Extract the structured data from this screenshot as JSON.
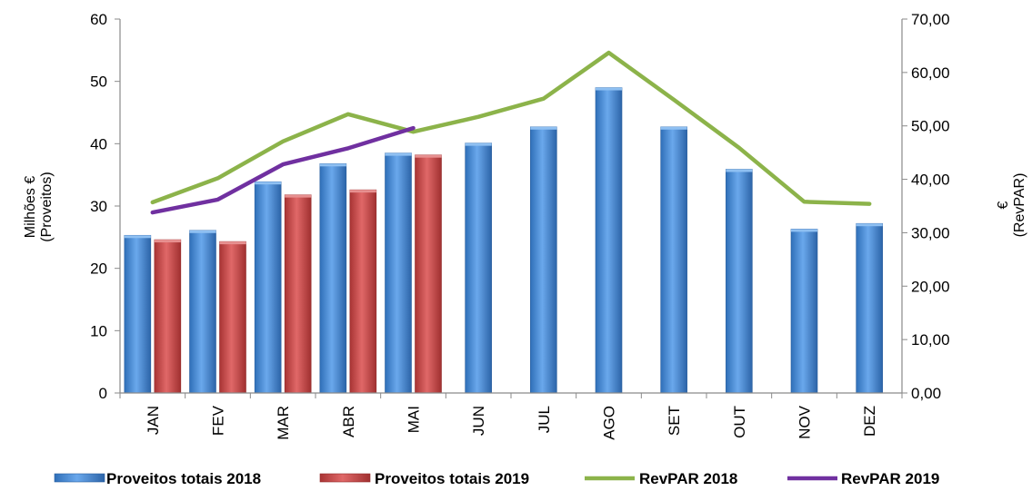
{
  "chart_data": {
    "type": "bar+line",
    "categories": [
      "JAN",
      "FEV",
      "MAR",
      "ABR",
      "MAI",
      "JUN",
      "JUL",
      "AGO",
      "SET",
      "OUT",
      "NOV",
      "DEZ"
    ],
    "bar_series": [
      {
        "name": "Proveitos totais 2018",
        "color": "#4f8fd6",
        "values": [
          25.3,
          26.1,
          33.9,
          36.8,
          38.5,
          40.1,
          42.7,
          49.0,
          42.7,
          35.9,
          26.3,
          27.2
        ]
      },
      {
        "name": "Proveitos totais 2019",
        "color": "#d05050",
        "values": [
          24.6,
          24.3,
          31.8,
          32.6,
          38.2,
          null,
          null,
          null,
          null,
          null,
          null,
          null
        ]
      }
    ],
    "line_series": [
      {
        "name": "RevPAR 2018",
        "color": "#8cb34a",
        "values": [
          35.7,
          40.2,
          47.1,
          52.2,
          48.9,
          51.7,
          55.1,
          63.7,
          54.9,
          45.9,
          35.8,
          35.4
        ]
      },
      {
        "name": "RevPAR 2019",
        "color": "#7030a0",
        "values": [
          33.8,
          36.2,
          42.8,
          45.8,
          49.6,
          null,
          null,
          null,
          null,
          null,
          null,
          null
        ]
      }
    ],
    "y_left": {
      "label_line1": "Milhões €",
      "label_line2": "(Proveitos)",
      "lim": [
        0,
        60
      ],
      "ticks": [
        "0",
        "10",
        "20",
        "30",
        "40",
        "50",
        "60"
      ]
    },
    "y_right": {
      "label_line1": "€",
      "label_line2": "(RevPAR)",
      "lim": [
        0,
        70
      ],
      "ticks": [
        "0,00",
        "10,00",
        "20,00",
        "30,00",
        "40,00",
        "50,00",
        "60,00",
        "70,00"
      ]
    },
    "grid": false,
    "legend_position": "bottom"
  }
}
